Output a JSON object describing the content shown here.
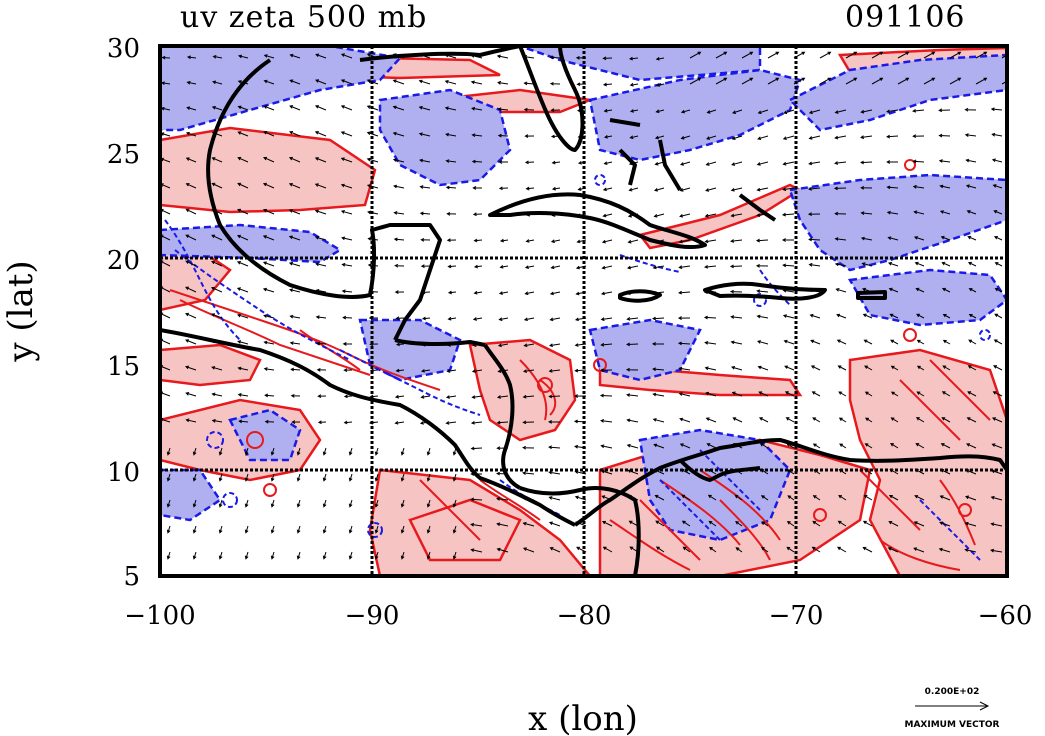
{
  "title": "uv zeta 500 mb",
  "date_label": "091106",
  "x_axis": {
    "label": "x (lon)",
    "ticks": [
      "−100",
      "−90",
      "−80",
      "−70",
      "−60"
    ],
    "values": [
      -100,
      -90,
      -80,
      -70,
      -60
    ],
    "range": [
      -100,
      -60
    ]
  },
  "y_axis": {
    "label": "y (lat)",
    "ticks": [
      "30",
      "25",
      "20",
      "15",
      "10",
      "5"
    ],
    "values": [
      30,
      25,
      20,
      15,
      10,
      5
    ],
    "range": [
      5,
      30
    ]
  },
  "gridlines": {
    "lon": [
      -90,
      -80,
      -70
    ],
    "lat": [
      20,
      10
    ]
  },
  "reference_vector": {
    "value_label": "0.200E+02",
    "caption": "MAXIMUM VECTOR"
  },
  "colors": {
    "positive_fill": "#f7c4c4",
    "positive_contour": "#e8191c",
    "negative_fill": "#b0b0f0",
    "negative_contour": "#1a1ae8",
    "coastline": "#000000",
    "vector": "#000000"
  },
  "chart_data": {
    "type": "map",
    "field": "relative vorticity (zeta) with wind vectors (u,v) at 500 mb",
    "lon_range": [
      -100,
      -60
    ],
    "lat_range": [
      5,
      30
    ],
    "legend": "reference vector bottom-right"
  }
}
